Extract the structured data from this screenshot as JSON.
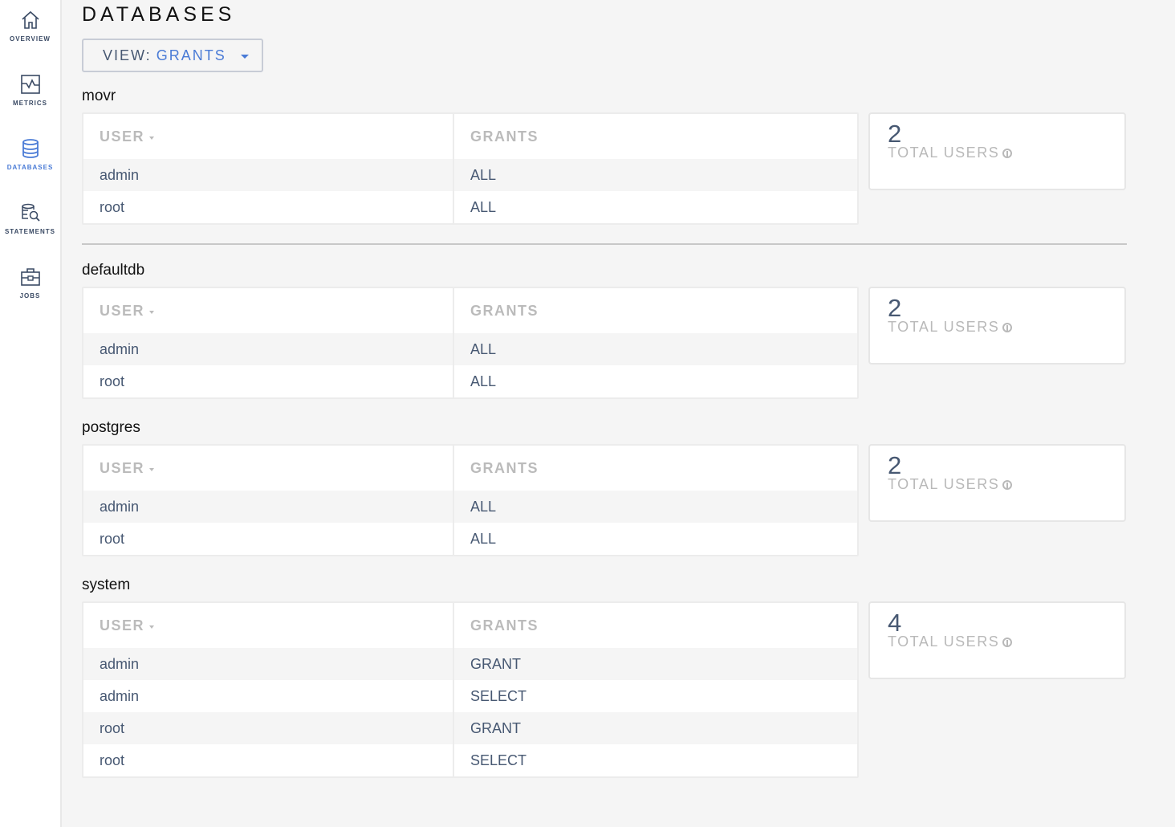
{
  "sidebar": {
    "items": [
      {
        "label": "OVERVIEW",
        "icon": "home-icon"
      },
      {
        "label": "METRICS",
        "icon": "metrics-icon"
      },
      {
        "label": "DATABASES",
        "icon": "database-icon",
        "active": true
      },
      {
        "label": "STATEMENTS",
        "icon": "statements-icon"
      },
      {
        "label": "JOBS",
        "icon": "jobs-icon"
      }
    ]
  },
  "page": {
    "title": "DATABASES",
    "view_label": "VIEW:",
    "view_value": "GRANTS"
  },
  "columns": {
    "user": "USER",
    "grants": "GRANTS"
  },
  "stat_label": "TOTAL USERS",
  "databases": [
    {
      "name": "movr",
      "total_users": "2",
      "rows": [
        [
          "admin",
          "ALL"
        ],
        [
          "root",
          "ALL"
        ]
      ]
    },
    {
      "name": "defaultdb",
      "total_users": "2",
      "rows": [
        [
          "admin",
          "ALL"
        ],
        [
          "root",
          "ALL"
        ]
      ]
    },
    {
      "name": "postgres",
      "total_users": "2",
      "rows": [
        [
          "admin",
          "ALL"
        ],
        [
          "root",
          "ALL"
        ]
      ]
    },
    {
      "name": "system",
      "total_users": "4",
      "rows": [
        [
          "admin",
          "GRANT"
        ],
        [
          "admin",
          "SELECT"
        ],
        [
          "root",
          "GRANT"
        ],
        [
          "root",
          "SELECT"
        ]
      ]
    }
  ],
  "colors": {
    "accent": "#4a7bd6",
    "text": "#475872"
  }
}
